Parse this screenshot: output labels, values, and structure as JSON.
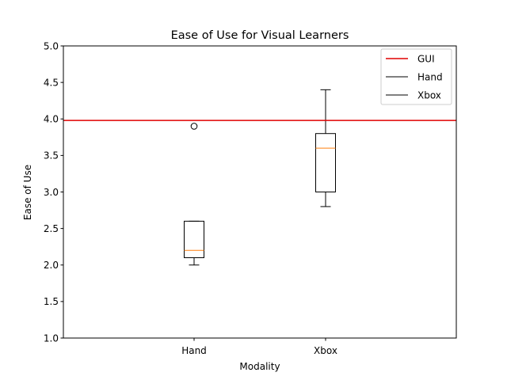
{
  "chart_data": {
    "type": "box",
    "title": "Ease of Use for Visual Learners",
    "xlabel": "Modality",
    "ylabel": "Ease of Use",
    "ylim": [
      1.0,
      5.0
    ],
    "yticks": [
      "1.0",
      "1.5",
      "2.0",
      "2.5",
      "3.0",
      "3.5",
      "4.0",
      "4.5",
      "5.0"
    ],
    "categories": [
      "Hand",
      "Xbox"
    ],
    "boxes": [
      {
        "name": "Hand",
        "whisker_low": 2.0,
        "q1": 2.1,
        "median": 2.2,
        "q3": 2.6,
        "whisker_high": 2.6,
        "outliers": [
          3.9
        ]
      },
      {
        "name": "Xbox",
        "whisker_low": 2.8,
        "q1": 3.0,
        "median": 3.6,
        "q3": 3.8,
        "whisker_high": 4.4,
        "outliers": []
      }
    ],
    "reference_line": {
      "name": "GUI",
      "value": 3.98,
      "color": "#e00000"
    },
    "grid": false,
    "legend": {
      "position": "top-right",
      "entries": [
        {
          "label": "GUI",
          "color": "#e00000"
        },
        {
          "label": "Hand",
          "color": "#000000"
        },
        {
          "label": "Xbox",
          "color": "#000000"
        }
      ]
    },
    "box_color": "#000000",
    "median_color": "#ff7f0e"
  }
}
